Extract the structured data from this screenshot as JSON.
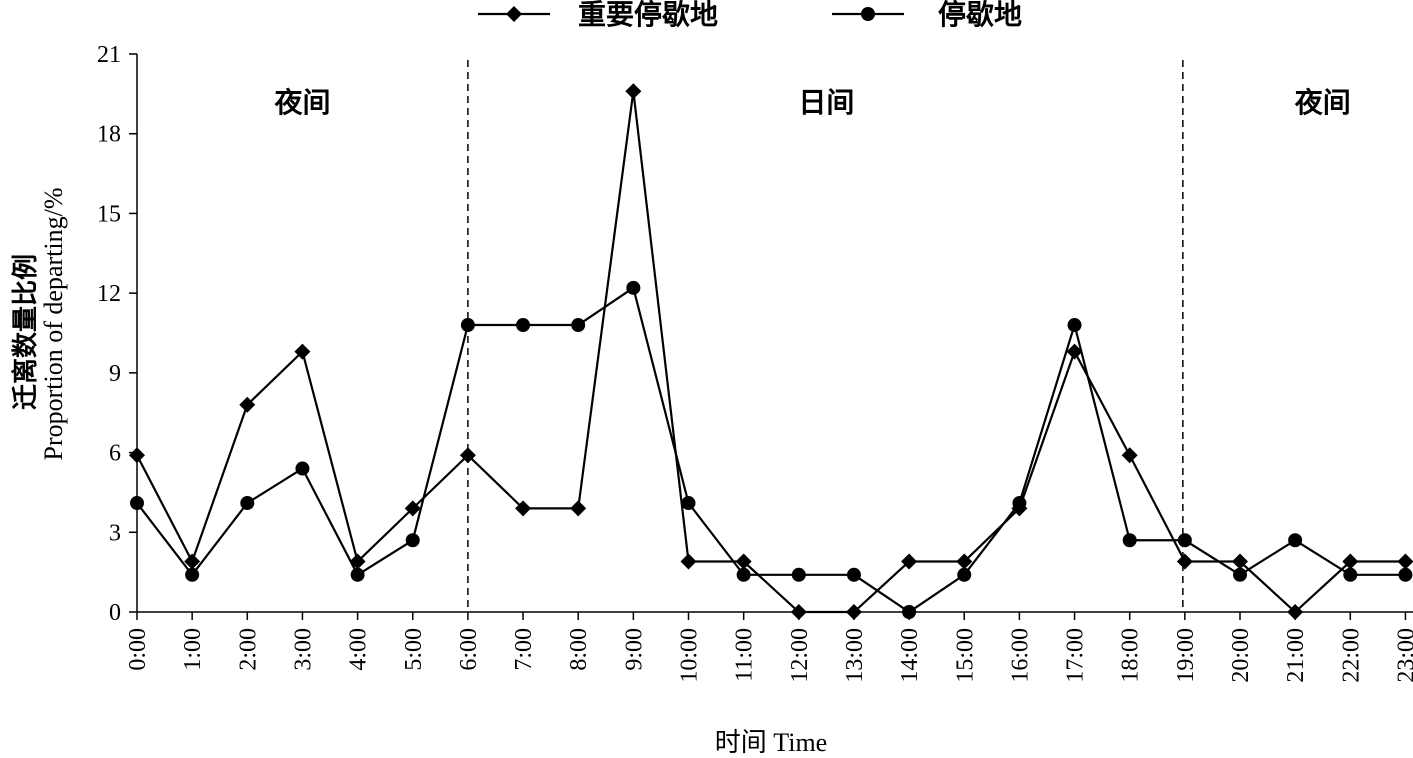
{
  "chart_data": {
    "type": "line",
    "categories": [
      "0:00",
      "1:00",
      "2:00",
      "3:00",
      "4:00",
      "5:00",
      "6:00",
      "7:00",
      "8:00",
      "9:00",
      "10:00",
      "11:00",
      "12:00",
      "13:00",
      "14:00",
      "15:00",
      "16:00",
      "17:00",
      "18:00",
      "19:00",
      "20:00",
      "21:00",
      "22:00",
      "23:00"
    ],
    "series": [
      {
        "name": "重要停歇地",
        "marker": "diamond",
        "values": [
          5.9,
          1.9,
          7.8,
          9.8,
          1.9,
          3.9,
          5.9,
          3.9,
          3.9,
          19.6,
          1.9,
          1.9,
          0,
          0,
          1.9,
          1.9,
          3.9,
          9.8,
          5.9,
          1.9,
          1.9,
          0,
          1.9,
          1.9
        ]
      },
      {
        "name": "停歇地",
        "marker": "circle",
        "values": [
          4.1,
          1.4,
          4.1,
          5.4,
          1.4,
          2.7,
          10.8,
          10.8,
          10.8,
          12.2,
          4.1,
          1.4,
          1.4,
          1.4,
          0,
          1.4,
          4.1,
          10.8,
          2.7,
          2.7,
          1.4,
          2.7,
          1.4,
          1.4
        ]
      }
    ],
    "ylim": [
      0,
      21
    ],
    "yticks": [
      "0",
      "3",
      "6",
      "9",
      "12",
      "15",
      "18",
      "21"
    ],
    "ylabel_cn": "迁离数量比例",
    "ylabel_en": "Proportion of departing/%",
    "xlabel": "时间 Time",
    "periods": [
      {
        "label": "夜间",
        "center": 3
      },
      {
        "label": "日间",
        "center": 12.5
      },
      {
        "label": "夜间",
        "center": 21.5
      }
    ],
    "dividers_at": [
      "6:00",
      "19:00"
    ],
    "legend_position": "top",
    "line_color": "#000000"
  }
}
